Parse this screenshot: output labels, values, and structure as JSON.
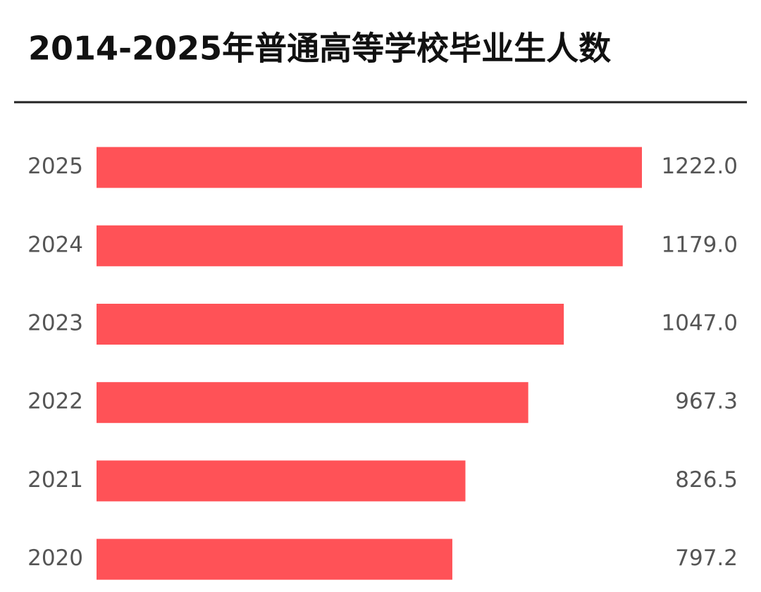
{
  "chart_data": {
    "type": "bar",
    "orientation": "horizontal",
    "title": "2014-2025年普通高等学校毕业生人数",
    "categories": [
      "2025",
      "2024",
      "2023",
      "2022",
      "2021",
      "2020"
    ],
    "values": [
      1222.0,
      1179.0,
      1047.0,
      967.3,
      826.5,
      797.2
    ],
    "value_labels": [
      "1222.0",
      "1179.0",
      "1047.0",
      "967.3",
      "826.5",
      "797.2"
    ],
    "color": "#ff5257"
  }
}
